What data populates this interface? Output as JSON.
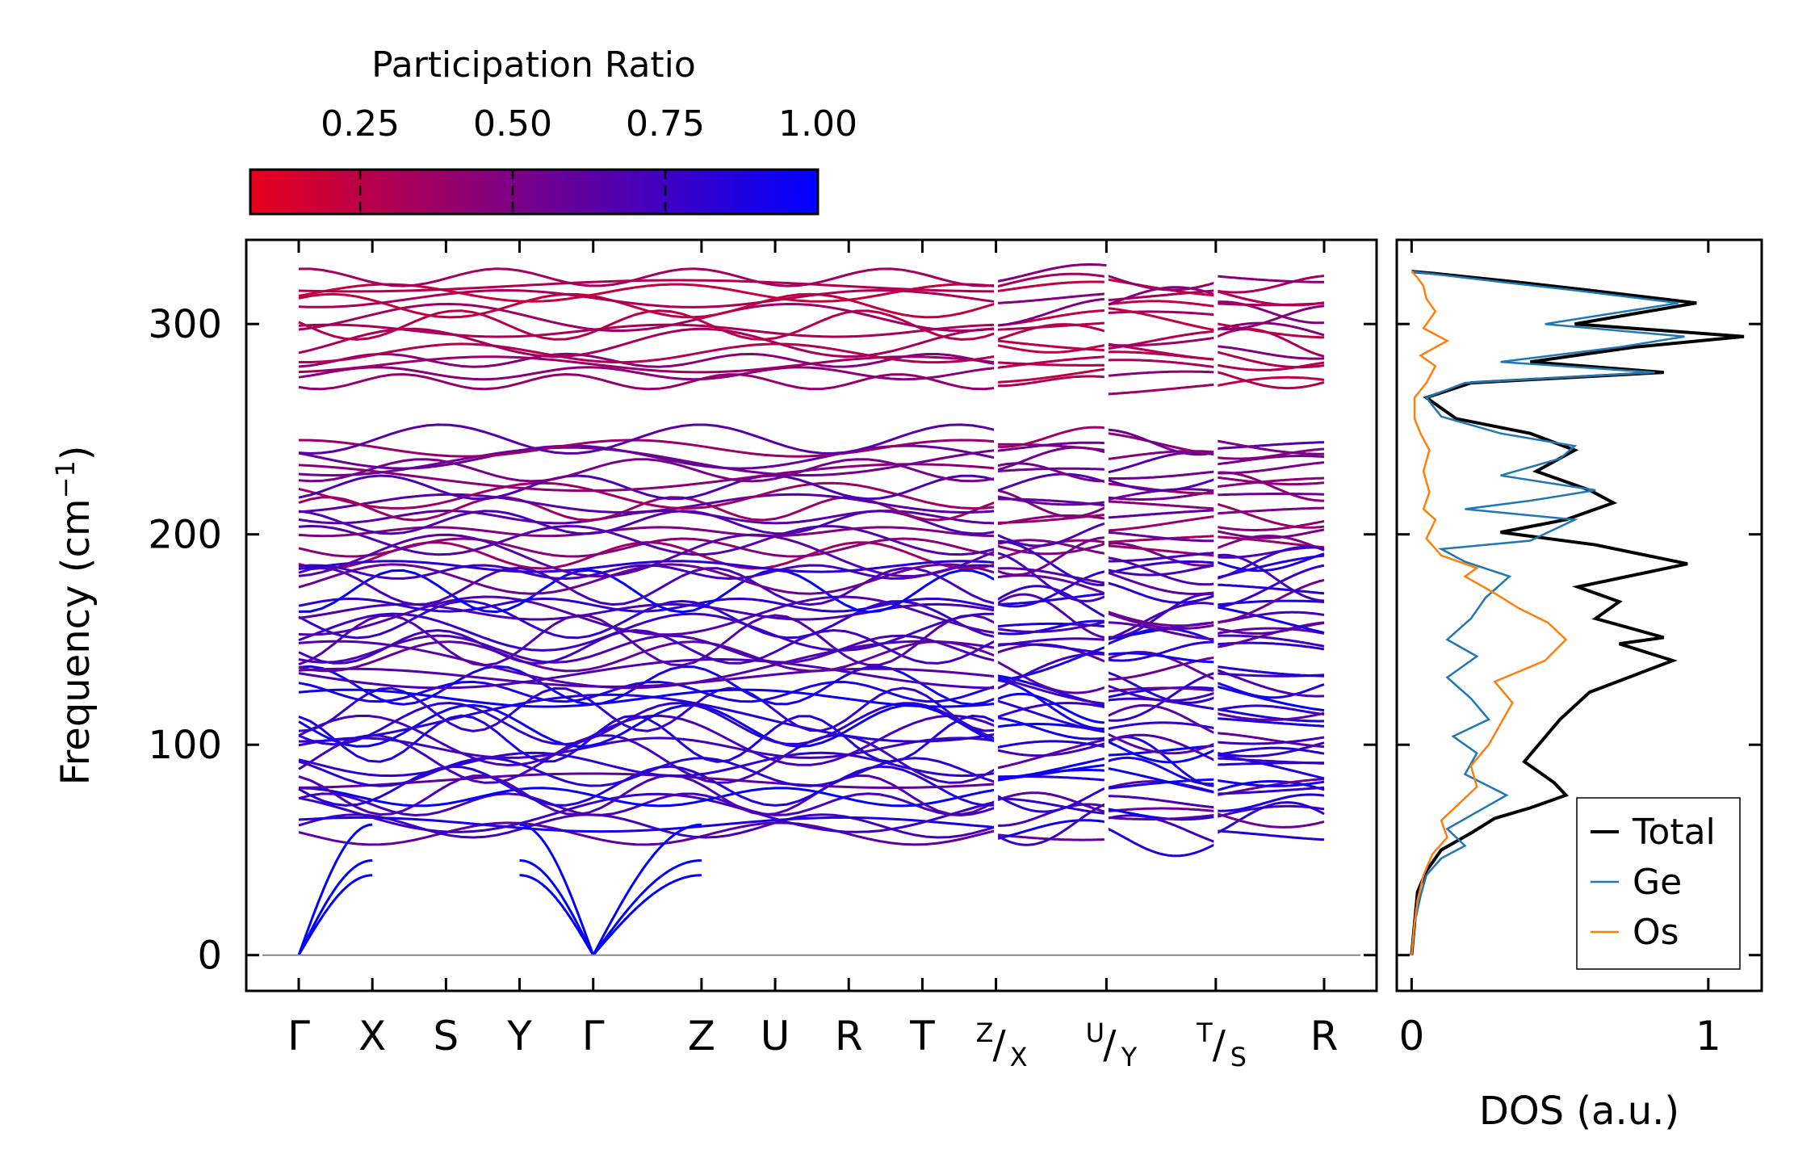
{
  "chart_data": [
    {
      "type": "line",
      "subtype": "phonon-band-structure",
      "ylabel": "Frequency (cm",
      "ylabel_sup": "−1",
      "ylabel_close": ")",
      "ylim": [
        -17,
        340
      ],
      "yticks": [
        0,
        100,
        200,
        300
      ],
      "segments": [
        {
          "labels": [
            "Γ",
            "X",
            "S",
            "Y",
            "Γ",
            "Z",
            "U",
            "R",
            "T",
            "Z"
          ],
          "x": [
            0,
            0.7,
            1.4,
            2.1,
            2.8,
            3.83,
            4.53,
            5.23,
            5.93,
            6.63
          ]
        },
        {
          "labels": [
            "X",
            "U"
          ],
          "x": [
            6.63,
            7.68
          ]
        },
        {
          "labels": [
            "Y",
            "T"
          ],
          "x": [
            7.68,
            8.72
          ]
        },
        {
          "labels": [
            "S",
            "R"
          ],
          "x": [
            8.72,
            9.75
          ]
        }
      ],
      "tick_labels": [
        {
          "top": "",
          "main": "Γ"
        },
        {
          "top": "",
          "main": "X"
        },
        {
          "top": "",
          "main": "S"
        },
        {
          "top": "",
          "main": "Y"
        },
        {
          "top": "",
          "main": "Γ"
        },
        {
          "top": "",
          "main": "Z"
        },
        {
          "top": "",
          "main": "U"
        },
        {
          "top": "",
          "main": "R"
        },
        {
          "top": "",
          "main": "T"
        },
        {
          "top": "Z",
          "main": "X"
        },
        {
          "top": "U",
          "main": "Y"
        },
        {
          "top": "T",
          "main": "S"
        },
        {
          "top": "",
          "main": "R"
        }
      ],
      "acoustic_branches": [
        {
          "gamma": 0,
          "endpoints": [
            38,
            45,
            62
          ]
        }
      ],
      "band_clusters": [
        {
          "name": "upper",
          "range": [
            270,
            325
          ],
          "count": 14,
          "participation": [
            0.2,
            0.5
          ]
        },
        {
          "name": "middle",
          "range": [
            188,
            247
          ],
          "count": 16,
          "participation": [
            0.35,
            0.7
          ]
        },
        {
          "name": "lower",
          "range": [
            55,
            190
          ],
          "count": 40,
          "participation": [
            0.55,
            1.0
          ]
        }
      ],
      "zero_line": 0
    },
    {
      "type": "colorbar",
      "title": "Participation Ratio",
      "range": [
        0.07,
        1.0
      ],
      "ticks": [
        "0.25",
        "0.50",
        "0.75",
        "1.00"
      ],
      "tick_values": [
        0.25,
        0.5,
        0.75,
        1.0
      ],
      "colors": [
        "#e8001c",
        "#0000ff"
      ]
    },
    {
      "type": "line",
      "subtype": "density-of-states",
      "xlabel": "DOS (a.u.)",
      "xticks": [
        "0",
        "1"
      ],
      "xtick_values": [
        0,
        1
      ],
      "xlim": [
        -0.05,
        1.18
      ],
      "legend": {
        "placement": "bottom-right"
      },
      "series": [
        {
          "name": "Total",
          "color": "#000000",
          "points": [
            [
              0,
              0
            ],
            [
              0.01,
              15
            ],
            [
              0.02,
              30
            ],
            [
              0.05,
              40
            ],
            [
              0.1,
              50
            ],
            [
              0.2,
              58
            ],
            [
              0.28,
              65
            ],
            [
              0.4,
              70
            ],
            [
              0.52,
              76
            ],
            [
              0.48,
              82
            ],
            [
              0.38,
              92
            ],
            [
              0.44,
              102
            ],
            [
              0.5,
              112
            ],
            [
              0.6,
              125
            ],
            [
              0.75,
              133
            ],
            [
              0.88,
              140
            ],
            [
              0.7,
              148
            ],
            [
              0.85,
              151
            ],
            [
              0.62,
              160
            ],
            [
              0.7,
              168
            ],
            [
              0.56,
              175
            ],
            [
              0.93,
              186
            ],
            [
              0.62,
              195
            ],
            [
              0.3,
              201
            ],
            [
              0.52,
              207
            ],
            [
              0.68,
              215
            ],
            [
              0.6,
              221
            ],
            [
              0.42,
              230
            ],
            [
              0.55,
              240
            ],
            [
              0.4,
              248
            ],
            [
              0.15,
              255
            ],
            [
              0.05,
              265
            ],
            [
              0.2,
              272
            ],
            [
              0.85,
              277
            ],
            [
              0.4,
              282
            ],
            [
              0.75,
              289
            ],
            [
              1.12,
              294
            ],
            [
              0.55,
              300
            ],
            [
              0.96,
              310
            ],
            [
              0.6,
              316
            ],
            [
              0.35,
              320
            ],
            [
              0.08,
              324
            ],
            [
              0,
              325
            ]
          ]
        },
        {
          "name": "Ge",
          "color": "#1f77b4",
          "points": [
            [
              0,
              0
            ],
            [
              0.01,
              15
            ],
            [
              0.03,
              28
            ],
            [
              0.05,
              38
            ],
            [
              0.1,
              46
            ],
            [
              0.18,
              52
            ],
            [
              0.12,
              60
            ],
            [
              0.22,
              68
            ],
            [
              0.32,
              76
            ],
            [
              0.18,
              86
            ],
            [
              0.22,
              96
            ],
            [
              0.14,
              104
            ],
            [
              0.26,
              112
            ],
            [
              0.2,
              122
            ],
            [
              0.12,
              132
            ],
            [
              0.22,
              142
            ],
            [
              0.12,
              150
            ],
            [
              0.2,
              160
            ],
            [
              0.25,
              170
            ],
            [
              0.33,
              180
            ],
            [
              0.18,
              187
            ],
            [
              0.1,
              193
            ],
            [
              0.4,
              197
            ],
            [
              0.55,
              207
            ],
            [
              0.18,
              212
            ],
            [
              0.4,
              216
            ],
            [
              0.62,
              221
            ],
            [
              0.3,
              228
            ],
            [
              0.5,
              236
            ],
            [
              0.55,
              242
            ],
            [
              0.3,
              248
            ],
            [
              0.1,
              256
            ],
            [
              0.05,
              265
            ],
            [
              0.18,
              272
            ],
            [
              0.82,
              277
            ],
            [
              0.3,
              282
            ],
            [
              0.7,
              289
            ],
            [
              0.92,
              294
            ],
            [
              0.45,
              300
            ],
            [
              0.9,
              310
            ],
            [
              0.55,
              316
            ],
            [
              0.3,
              320
            ],
            [
              0.06,
              324
            ],
            [
              0,
              325
            ]
          ]
        },
        {
          "name": "Os",
          "color": "#ff7f0e",
          "points": [
            [
              0,
              0
            ],
            [
              0.01,
              15
            ],
            [
              0.02,
              26
            ],
            [
              0.04,
              38
            ],
            [
              0.07,
              48
            ],
            [
              0.12,
              56
            ],
            [
              0.1,
              64
            ],
            [
              0.16,
              72
            ],
            [
              0.22,
              80
            ],
            [
              0.2,
              90
            ],
            [
              0.26,
              100
            ],
            [
              0.3,
              110
            ],
            [
              0.34,
              120
            ],
            [
              0.28,
              130
            ],
            [
              0.45,
              140
            ],
            [
              0.52,
              150
            ],
            [
              0.46,
              158
            ],
            [
              0.36,
              165
            ],
            [
              0.28,
              172
            ],
            [
              0.18,
              180
            ],
            [
              0.22,
              184
            ],
            [
              0.1,
              190
            ],
            [
              0.05,
              198
            ],
            [
              0.08,
              207
            ],
            [
              0.04,
              212
            ],
            [
              0.06,
              220
            ],
            [
              0.04,
              230
            ],
            [
              0.06,
              240
            ],
            [
              0.03,
              248
            ],
            [
              0.01,
              255
            ],
            [
              0.01,
              265
            ],
            [
              0.05,
              272
            ],
            [
              0.08,
              280
            ],
            [
              0.03,
              285
            ],
            [
              0.12,
              292
            ],
            [
              0.04,
              298
            ],
            [
              0.08,
              306
            ],
            [
              0.05,
              312
            ],
            [
              0.04,
              318
            ],
            [
              0.02,
              322
            ],
            [
              0,
              325
            ]
          ]
        }
      ]
    }
  ]
}
